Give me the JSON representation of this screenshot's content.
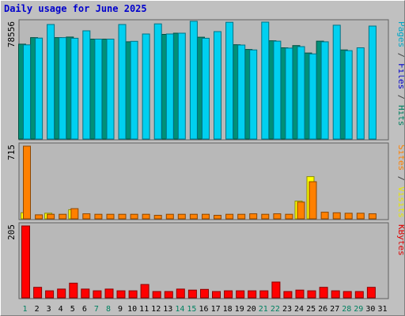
{
  "page": {
    "title": "Daily usage for June 2025"
  },
  "chart_data": {
    "type": "bar",
    "title": "Daily usage for June 2025",
    "categories": [
      "1",
      "2",
      "3",
      "4",
      "5",
      "6",
      "7",
      "8",
      "9",
      "10",
      "11",
      "12",
      "13",
      "14",
      "15",
      "16",
      "17",
      "18",
      "19",
      "20",
      "21",
      "22",
      "23",
      "24",
      "25",
      "26",
      "27",
      "28",
      "29",
      "30",
      "31"
    ],
    "weekend_categories": [
      "1",
      "7",
      "8",
      "14",
      "15",
      "21",
      "22",
      "28",
      "29"
    ],
    "panels": [
      {
        "id": "hits-files-pages",
        "ymax_label": "78556",
        "ymax": 78556,
        "legend": [
          {
            "text": "Pages",
            "color": "#00a8c8"
          },
          {
            "text": " / ",
            "color": "#404040"
          },
          {
            "text": "Files",
            "color": "#0000cc"
          },
          {
            "text": " / ",
            "color": "#404040"
          },
          {
            "text": "Hits",
            "color": "#008060"
          }
        ],
        "series": [
          {
            "name": "Hits",
            "color": "#009078",
            "values": [
              64200,
              68600,
              null,
              68600,
              69000,
              null,
              67600,
              67600,
              null,
              65800,
              null,
              null,
              70800,
              71600,
              null,
              68900,
              null,
              null,
              63800,
              60600,
              null,
              66500,
              61700,
              63200,
              58200,
              66200,
              null,
              60300,
              null,
              null,
              null
            ]
          },
          {
            "name": "Files",
            "color": "#0000cc",
            "values": [
              null,
              null,
              null,
              null,
              null,
              null,
              null,
              null,
              null,
              null,
              null,
              null,
              null,
              null,
              null,
              null,
              null,
              null,
              null,
              null,
              null,
              null,
              null,
              null,
              null,
              null,
              null,
              null,
              null,
              null,
              null
            ]
          },
          {
            "name": "Pages",
            "color": "#00d0f0",
            "values": [
              63700,
              68300,
              77500,
              68600,
              68200,
              73200,
              67600,
              67600,
              77500,
              66100,
              71100,
              77900,
              71100,
              71600,
              79700,
              68200,
              72700,
              79000,
              63600,
              60300,
              79100,
              66200,
              61500,
              62500,
              57600,
              65800,
              77000,
              59800,
              61700,
              76400,
              null
            ]
          }
        ]
      },
      {
        "id": "visits-sites",
        "ymax_label": "715",
        "ymax": 715,
        "legend": [
          {
            "text": "Sites",
            "color": "#ff8000"
          },
          {
            "text": " / ",
            "color": "#404040"
          },
          {
            "text": "Visits",
            "color": "#e8e800"
          }
        ],
        "series": [
          {
            "name": "Visits",
            "color": "#ffff00",
            "values": [
              60,
              null,
              55,
              null,
              90,
              null,
              null,
              null,
              null,
              null,
              null,
              null,
              null,
              null,
              null,
              null,
              null,
              null,
              null,
              null,
              null,
              null,
              null,
              175,
              415,
              null,
              null,
              null,
              null,
              null,
              null
            ]
          },
          {
            "name": "Sites",
            "color": "#ff8000",
            "values": [
              715,
              40,
              45,
              45,
              100,
              50,
              45,
              45,
              45,
              45,
              45,
              35,
              45,
              45,
              45,
              45,
              35,
              45,
              45,
              50,
              45,
              50,
              45,
              165,
              365,
              65,
              60,
              55,
              55,
              50,
              null
            ]
          }
        ]
      },
      {
        "id": "kbytes",
        "ymax_label": "205",
        "ymax": 205,
        "legend": [
          {
            "text": "KBytes",
            "color": "#e00000"
          }
        ],
        "series": [
          {
            "name": "KBytes",
            "color": "#ff0000",
            "values": [
              205,
              30,
              20,
              25,
              42,
              25,
              20,
              25,
              20,
              20,
              38,
              18,
              18,
              25,
              22,
              24,
              18,
              20,
              20,
              20,
              20,
              45,
              18,
              22,
              20,
              30,
              20,
              18,
              18,
              30,
              null
            ]
          }
        ]
      }
    ]
  }
}
